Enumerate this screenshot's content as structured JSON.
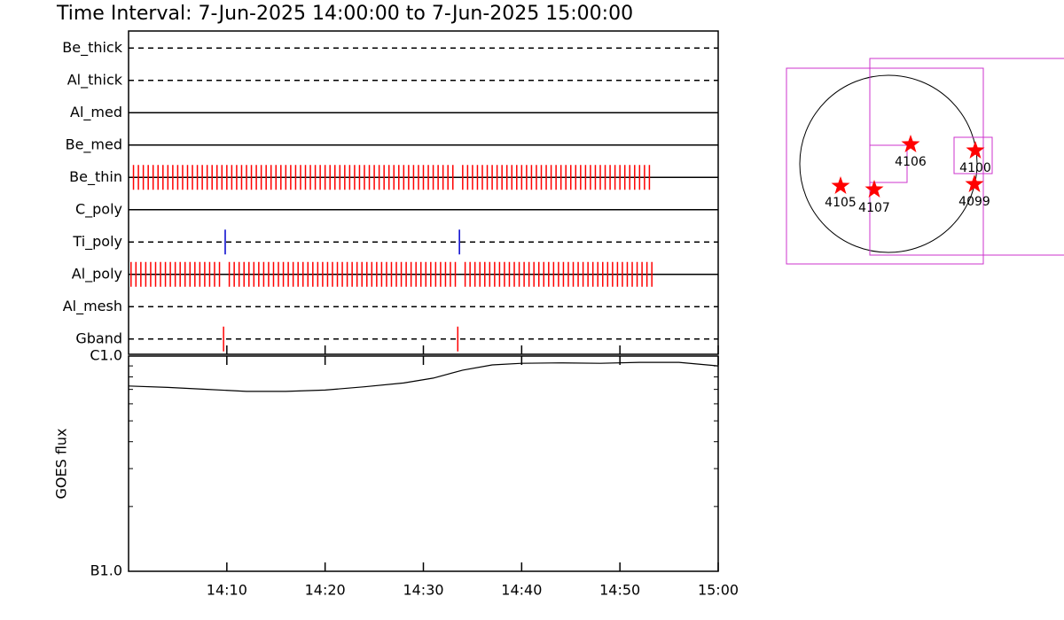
{
  "title": "Time Interval:  7-Jun-2025 14:00:00 to  7-Jun-2025 15:00:00",
  "chart_data": [
    {
      "type": "events",
      "rows": [
        {
          "name": "Be_thick",
          "line": "dashed"
        },
        {
          "name": "Al_thick",
          "line": "dashed"
        },
        {
          "name": "Al_med",
          "line": "solid"
        },
        {
          "name": "Be_med",
          "line": "solid"
        },
        {
          "name": "Be_thin",
          "line": "solid",
          "color": "#ff0000",
          "times": [
            "14:00:30",
            "14:01:00",
            "14:01:30",
            "14:02:00",
            "14:02:30",
            "14:03:00",
            "14:03:30",
            "14:04:00",
            "14:04:30",
            "14:05:00",
            "14:05:30",
            "14:06:00",
            "14:06:30",
            "14:07:00",
            "14:07:30",
            "14:08:00",
            "14:08:30",
            "14:09:00",
            "14:09:30",
            "14:10:00",
            "14:10:30",
            "14:11:00",
            "14:11:30",
            "14:12:00",
            "14:12:30",
            "14:13:00",
            "14:13:30",
            "14:14:00",
            "14:14:30",
            "14:15:00",
            "14:15:30",
            "14:16:00",
            "14:16:30",
            "14:17:00",
            "14:17:30",
            "14:18:00",
            "14:18:30",
            "14:19:00",
            "14:19:30",
            "14:20:00",
            "14:20:30",
            "14:21:00",
            "14:21:30",
            "14:22:00",
            "14:22:30",
            "14:23:00",
            "14:23:30",
            "14:24:00",
            "14:24:30",
            "14:25:00",
            "14:25:30",
            "14:26:00",
            "14:26:30",
            "14:27:00",
            "14:27:30",
            "14:28:00",
            "14:28:30",
            "14:29:00",
            "14:29:30",
            "14:30:00",
            "14:30:30",
            "14:31:00",
            "14:31:30",
            "14:32:00",
            "14:32:30",
            "14:33:00",
            "14:34:00",
            "14:34:30",
            "14:35:00",
            "14:35:30",
            "14:36:00",
            "14:36:30",
            "14:37:00",
            "14:37:30",
            "14:38:00",
            "14:38:30",
            "14:39:00",
            "14:39:30",
            "14:40:00",
            "14:40:30",
            "14:41:00",
            "14:41:30",
            "14:42:00",
            "14:42:30",
            "14:43:00",
            "14:43:30",
            "14:44:00",
            "14:44:30",
            "14:45:00",
            "14:45:30",
            "14:46:00",
            "14:46:30",
            "14:47:00",
            "14:47:30",
            "14:48:00",
            "14:48:30",
            "14:49:00",
            "14:49:30",
            "14:50:00",
            "14:50:30",
            "14:51:00",
            "14:51:30",
            "14:52:00",
            "14:52:30",
            "14:53:00"
          ]
        },
        {
          "name": "C_poly",
          "line": "solid"
        },
        {
          "name": "Ti_poly",
          "line": "dashed",
          "color": "#0000cc",
          "times": [
            "14:09:50",
            "14:33:40"
          ]
        },
        {
          "name": "Al_poly",
          "line": "solid",
          "color": "#ff0000",
          "times": [
            "14:00:15",
            "14:00:45",
            "14:01:15",
            "14:01:45",
            "14:02:15",
            "14:02:45",
            "14:03:15",
            "14:03:45",
            "14:04:15",
            "14:04:45",
            "14:05:15",
            "14:05:45",
            "14:06:15",
            "14:06:45",
            "14:07:15",
            "14:07:45",
            "14:08:15",
            "14:08:45",
            "14:09:15",
            "14:10:15",
            "14:10:45",
            "14:11:15",
            "14:11:45",
            "14:12:15",
            "14:12:45",
            "14:13:15",
            "14:13:45",
            "14:14:15",
            "14:14:45",
            "14:15:15",
            "14:15:45",
            "14:16:15",
            "14:16:45",
            "14:17:15",
            "14:17:45",
            "14:18:15",
            "14:18:45",
            "14:19:15",
            "14:19:45",
            "14:20:15",
            "14:20:45",
            "14:21:15",
            "14:21:45",
            "14:22:15",
            "14:22:45",
            "14:23:15",
            "14:23:45",
            "14:24:15",
            "14:24:45",
            "14:25:15",
            "14:25:45",
            "14:26:15",
            "14:26:45",
            "14:27:15",
            "14:27:45",
            "14:28:15",
            "14:28:45",
            "14:29:15",
            "14:29:45",
            "14:30:15",
            "14:30:45",
            "14:31:15",
            "14:31:45",
            "14:32:15",
            "14:32:45",
            "14:33:15",
            "14:34:15",
            "14:34:45",
            "14:35:15",
            "14:35:45",
            "14:36:15",
            "14:36:45",
            "14:37:15",
            "14:37:45",
            "14:38:15",
            "14:38:45",
            "14:39:15",
            "14:39:45",
            "14:40:15",
            "14:40:45",
            "14:41:15",
            "14:41:45",
            "14:42:15",
            "14:42:45",
            "14:43:15",
            "14:43:45",
            "14:44:15",
            "14:44:45",
            "14:45:15",
            "14:45:45",
            "14:46:15",
            "14:46:45",
            "14:47:15",
            "14:47:45",
            "14:48:15",
            "14:48:45",
            "14:49:15",
            "14:49:45",
            "14:50:15",
            "14:50:45",
            "14:51:15",
            "14:51:45",
            "14:52:15",
            "14:52:45",
            "14:53:15"
          ]
        },
        {
          "name": "Al_mesh",
          "line": "dashed"
        },
        {
          "name": "Gband",
          "line": "dashed",
          "color": "#ff0000",
          "times": [
            "14:09:40",
            "14:33:30"
          ]
        }
      ]
    },
    {
      "type": "line",
      "ylabel": "GOES flux",
      "yscale": "log",
      "ylim": [
        1e-07,
        1e-06
      ],
      "yticks": [
        {
          "value": 1e-07,
          "label": "B1.0"
        },
        {
          "value": 1e-06,
          "label": "C1.0"
        }
      ],
      "yminor": [
        2e-07,
        3e-07,
        4e-07,
        5e-07,
        6e-07,
        7e-07,
        8e-07,
        9e-07
      ],
      "xlim": [
        "14:00",
        "15:00"
      ],
      "xticks": [
        "14:10",
        "14:20",
        "14:30",
        "14:40",
        "14:50",
        "15:00"
      ],
      "color": "#000000",
      "x": [
        "14:00",
        "14:04",
        "14:08",
        "14:12",
        "14:16",
        "14:20",
        "14:24",
        "14:28",
        "14:31",
        "14:34",
        "14:37",
        "14:40",
        "14:44",
        "14:48",
        "14:52",
        "14:56",
        "15:00"
      ],
      "values": [
        7.26e-07,
        7.15e-07,
        7e-07,
        6.85e-07,
        6.85e-07,
        6.95e-07,
        7.2e-07,
        7.5e-07,
        7.9e-07,
        8.6e-07,
        9.1e-07,
        9.25e-07,
        9.3e-07,
        9.25e-07,
        9.35e-07,
        9.35e-07,
        9e-07
      ]
    }
  ],
  "map": {
    "regions": [
      "4105",
      "4107",
      "4106",
      "4100",
      "4099"
    ]
  }
}
